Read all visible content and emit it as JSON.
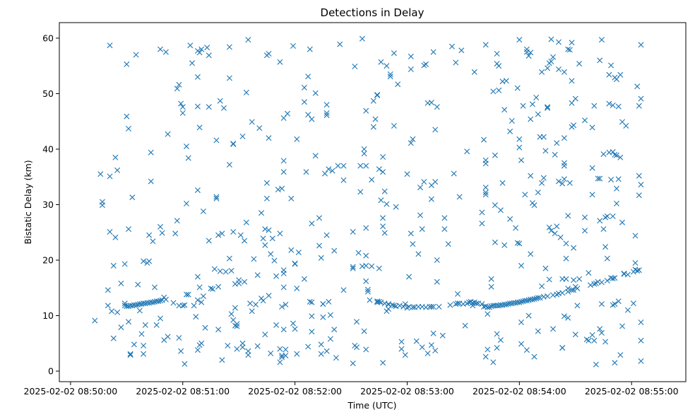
{
  "chart_data": {
    "type": "scatter",
    "title": "Detections in Delay",
    "xlabel": "Time (UTC)",
    "ylabel": "Bistatic Delay (km)",
    "marker": "x",
    "color": "#1f77b4",
    "grid": false,
    "legend": "none",
    "xlim": [
      "2025-02-02 08:49:54",
      "2025-02-02 08:55:29"
    ],
    "ylim": [
      -1.9,
      62.8
    ],
    "x_ticks": [
      "2025-02-02 08:50:00",
      "2025-02-02 08:51:00",
      "2025-02-02 08:52:00",
      "2025-02-02 08:53:00",
      "2025-02-02 08:54:00",
      "2025-02-02 08:55:00"
    ],
    "y_ticks": [
      0,
      10,
      20,
      30,
      40,
      50,
      60
    ],
    "series": [
      {
        "points_text": "08:50:13|9.1;08:50:16|35.5;08:50:17|30.5;08:50:17|29.9;08:50:20|11.8;08:50:20|14.6;08:50:21|58.7;08:50:21|25.1;08:50:21|35.1;08:50:22|10.8;08:50:23|19.0;08:50:23|5.9;08:50:24|38.5;08:50:24|24.1;08:50:25|10.6;08:50:25|36.2;08:50:27|15.8;08:50:27|7.9;08:50:29|11.8;08:50:29|12.2;08:50:29|19.3;08:50:30|55.3;08:50:30|45.9;08:50:30|11.7;08:50:31|43.7;08:50:31|25.6;08:50:31|8.9;08:50:31|11.7;08:50:32|3.1;08:50:32|11.8;08:50:32|2.9;08:50:33|31.3;08:50:33|11.8;08:50:34|11.9;08:50:34|4.8;08:50:35|57.0;08:50:35|11.9;08:50:36|12.0;08:50:36|15.6;08:50:37|12.1;08:50:37|10.9;08:50:38|12.1;08:50:38|6.7;08:50:39|4.6;08:50:39|19.8;08:50:39|12.2;08:50:39|3.1;08:50:40|12.2;08:50:40|8.3;08:50:41|19.5;08:50:41|12.3;08:50:42|12.3;08:50:42|19.8;08:50:42|24.5;08:50:43|39.4;08:50:43|34.2;08:50:43|12.4;08:50:44|12.4;08:50:44|23.4;08:50:45|12.5;08:50:45|15.1;08:50:46|12.6;08:50:46|8.3;08:50:47|12.6;08:50:48|12.7;08:50:48|9.5;08:50:48|26.0;08:50:48|58.0;08:50:49|24.9;08:50:49|12.8;08:50:50|5.6;08:50:50|13.3;08:50:51|57.5;08:50:51|12.9;08:50:52|6.2;08:50:52|42.7;08:50:55|12.3;08:50:56|24.8;08:50:57|27.1;08:50:57|50.9;08:50:58|6.0;08:50:58|11.8;08:50:58|51.6;08:50:59|48.2;08:50:59|3.6;08:51:00|46.5;08:51:00|47.6;08:51:00|11.8;08:51:01|1.3;08:51:01|11.9;08:51:02|40.5;08:51:02|13.8;08:51:02|30.2;08:51:03|13.8;08:51:03|38.4;08:51:04|58.7;08:51:05|55.5;08:51:06|11.8;08:51:07|9.8;08:51:08|3.8;08:51:08|57.7;08:51:08|32.6;08:51:08|53.0;08:51:08|17.0;08:51:08|47.7;08:51:08|12.8;08:51:09|4.7;08:51:09|57.4;08:51:09|43.9;08:51:09|15.1;08:51:10|5.0;08:51:10|58.0;08:51:10|12.4;08:51:11|13.5;08:51:11|28.8;08:51:12|7.8;08:51:13|58.3;08:51:14|23.5;08:51:14|56.9;08:51:14|47.6;08:51:15|14.9;08:51:16|14.8;08:51:17|18.4;08:51:18|31.4;08:51:18|31.1;08:51:18|41.6;08:51:19|7.5;08:51:19|15.2;08:51:19|24.5;08:51:20|18.0;08:51:20|48.7;08:51:21|2.0;08:51:21|24.8;08:51:22|47.4;08:51:23|17.9;08:51:24|4.6;08:51:25|58.4;08:51:25|20.3;08:51:25|37.2;08:51:25|52.8;08:51:26|10.3;08:51:26|18.1;08:51:27|9.2;08:51:27|41.0;08:51:27|25.1;08:51:27|40.9;08:51:28|8.2;08:51:28|11.4;08:51:28|15.7;08:51:29|8.1;08:51:29|8.5;08:51:29|4.0;08:51:30|15.8;08:51:30|16.4;08:51:31|24.5;08:51:32|5.0;08:51:32|42.3;08:51:32|4.3;08:51:33|23.5;08:51:33|16.1;08:51:34|26.8;08:51:34|50.2;08:51:35|3.6;08:51:35|2.9;08:51:35|59.7;08:51:36|12.2;08:51:37|10.8;08:51:37|44.9;08:51:38|20.2;08:51:39|12.0;08:51:40|17.3;08:51:40|4.5;08:51:41|43.8;08:51:42|28.5;08:51:42|13.1;08:51:43|12.7;08:51:43|23.9;08:51:44|6.6;08:51:44|22.7;08:51:44|25.6;08:51:45|33.9;08:51:45|56.9;08:51:45|31.1;08:51:46|13.6;08:51:46|57.2;08:51:46|25.4;08:51:46|42.0;08:51:47|3.2;08:51:47|21.1;08:51:48|23.9;08:51:49|19.9;08:51:50|8.3;08:51:50|17.1;08:51:51|32.7;08:51:52|4.0;08:51:52|24.8;08:51:52|55.7;08:51:52|1.6;08:51:53|2.8;08:51:53|2.5;08:51:53|32.9;08:51:53|11.6;08:51:54|35.9;08:51:54|45.6;08:51:54|18.2;08:51:54|17.6;08:51:54|37.9;08:51:54|7.5;08:51:54|15.1;08:51:55|2.8;08:51:55|12.0;08:51:55|3.9;08:51:56|46.4;08:51:58|31.1;08:51:58|21.8;08:51:59|58.6;08:51:59|8.6;08:52:00|19.4;08:52:00|19.3;08:52:00|7.6;08:52:01|41.8;08:52:01|3.1;08:52:01|14.9;08:52:02|21.4;08:52:05|48.5;08:52:05|16.6;08:52:05|51.1;08:52:06|35.9;08:52:07|46.2;08:52:07|4.4;08:52:07|53.1;08:52:08|58.0;08:52:08|12.5;08:52:09|26.6;08:52:09|12.4;08:52:09|7.1;08:52:09|45.4;08:52:09|9.9;08:52:11|38.8;08:52:11|50.1;08:52:13|27.6;08:52:13|22.6;08:52:14|20.4;08:52:14|3.1;08:52:14|4.8;08:52:15|12.1;08:52:15|12.1;08:52:15|9.7;08:52:16|35.6;08:52:17|48.0;08:52:17|46.5;08:52:17|46.1;08:52:17|3.6;08:52:17|24.5;08:52:18|12.5;08:52:18|36.4;08:52:19|5.8;08:52:19|10.1;08:52:20|36.1;08:52:21|7.5;08:52:21|21.7;08:52:22|2.4;08:52:23|37.0;08:52:24|58.9;08:52:26|34.4;08:52:26|14.6;08:52:26|37.0;08:52:31|25.1;08:52:31|18.5;08:52:31|18.8;08:52:31|1.4;08:52:32|54.9;08:52:32|4.6;08:52:33|4.3;08:52:33|8.9;08:52:34|21.3;08:52:35|32.3;08:52:35|37.0;08:52:36|18.9;08:52:36|59.9;08:52:37|40.0;08:52:37|7.2;08:52:37|39.2;08:52:38|20.8;08:52:38|19.0;08:52:38|46.9;08:52:38|37.0;08:52:38|25.8;08:52:38|3.9;08:52:38|16.2;08:52:39|14.7;08:52:39|14.3;08:52:40|12.8;08:52:41|34.5;08:52:41|18.9;08:52:42|48.7;08:52:42|44.0;08:52:43|45.4;08:52:44|12.6;08:52:44|49.7;08:52:44|49.8;08:52:44|12.4;08:52:45|12.5;08:52:45|36.4;08:52:45|18.5;08:52:46|55.7;08:52:46|30.8;08:52:46|12.4;08:52:47|26.1;08:52:47|27.6;08:52:47|38.6;08:52:47|35.9;08:52:47|1.5;08:52:48|24.9;08:52:48|12.2;08:52:48|32.4;08:52:49|30.1;08:52:49|55.0;08:52:49|10.8;08:52:50|12.0;08:52:50|12.1;08:52:50|11.2;08:52:51|53.1;08:52:51|53.5;08:52:52|11.9;08:52:53|11.8;08:52:53|44.2;08:52:53|57.3;08:52:54|11.7;08:52:54|29.6;08:52:55|51.7;08:52:56|11.8;08:52:57|5.3;08:52:57|4.0;08:52:58|11.6;08:52:59|12.1;08:52:59|2.9;08:53:00|35.5;08:53:00|11.4;08:53:01|17.0;08:53:01|11.6;08:53:02|56.7;08:53:02|24.8;08:53:02|54.4;08:53:02|41.1;08:53:03|22.9;08:53:03|11.5;08:53:03|41.8;08:53:04|11.5;08:53:05|5.4;08:53:06|11.6;08:53:06|21.1;08:53:07|33.1;08:53:07|28.1;08:53:08|4.3;08:53:08|11.6;08:53:08|25.6;08:53:09|34.1;08:53:09|55.1;08:53:10|55.3;08:53:10|11.5;08:53:11|3.2;08:53:11|48.3;08:53:12|11.6;08:53:13|33.5;08:53:13|31.0;08:53:13|11.6;08:53:13|48.4;08:53:13|4.7;08:53:14|6.8;08:53:14|11.6;08:53:14|57.5;08:53:15|3.7;08:53:15|34.1;08:53:15|43.5;08:53:16|20.0;08:53:16|16.1;08:53:16|47.6;08:53:17|11.6;08:53:19|6.4;08:53:20|25.6;08:53:20|27.6;08:53:22|22.9;08:53:23|11.9;08:53:24|58.5;08:53:25|35.6;08:53:26|55.6;08:53:26|12.1;08:53:27|12.2;08:53:27|13.9;08:53:28|12.2;08:53:28|31.4;08:53:29|57.8;08:53:30|12.1;08:53:31|8.2;08:53:32|12.2;08:53:32|39.6;08:53:33|12.4;08:53:34|12.5;08:53:35|12.3;08:53:35|11.8;08:53:36|12.4;08:53:36|53.9;08:53:37|12.2;08:53:38|12.2;08:53:40|12.1;08:53:40|26.6;08:53:40|28.6;08:53:41|11.6;08:53:41|41.7;08:53:42|11.7;08:53:42|58.8;08:53:42|2.6;08:53:42|32.2;08:53:42|33.1;08:53:42|38.0;08:53:42|37.4;08:53:42|31.8;08:53:43|11.5;08:53:43|10.3;08:53:43|3.9;08:53:44|11.5;08:53:45|11.7;08:53:45|15.2;08:53:45|16.6;08:53:46|11.8;08:53:46|1.6;08:53:46|50.4;08:53:47|11.8;08:53:47|29.9;08:53:47|23.2;08:53:47|38.9;08:53:48|11.8;08:53:48|57.2;08:53:48|55.4;08:53:48|6.7;08:53:48|4.2;08:53:49|11.8;08:53:49|50.6;08:53:49|55.0;08:53:50|11.9;08:53:50|29.0;08:53:50|5.6;08:53:51|11.9;08:53:51|52.2;08:53:51|33.9;08:53:52|12.0;08:53:52|47.1;08:53:52|22.7;08:53:53|12.0;08:53:53|52.3;08:53:54|12.1;08:53:55|12.2;08:53:55|43.2;08:53:55|27.4;08:53:56|12.2;08:53:56|45.1;08:53:57|12.3;08:53:58|12.3;08:53:58|25.8;08:53:59|12.4;08:53:59|51.0;08:53:59|23.1;08:54:00|12.4;08:54:00|59.7;08:54:00|40.3;08:54:00|23.0;08:54:00|41.8;08:54:01|12.5;08:54:01|8.8;08:54:01|38.0;08:54:01|4.9;08:54:01|19.0;08:54:02|12.6;08:54:02|47.8;08:54:03|12.7;08:54:03|31.8;08:54:04|12.7;08:54:04|58.0;08:54:04|57.5;08:54:04|3.8;08:54:05|12.8;08:54:05|56.8;08:54:05|10.0;08:54:06|12.9;08:54:06|57.4;08:54:06|21.1;08:54:06|35.2;08:54:06|45.4;08:54:07|12.9;08:54:07|30.3;08:54:07|48.1;08:54:08|13.0;08:54:08|29.9;08:54:08|2.6;08:54:09|13.1;08:54:09|49.3;08:54:10|32.2;08:54:10|46.3;08:54:10|13.2;08:54:10|7.2;08:54:11|42.2;08:54:11|13.2;08:54:12|53.9;08:54:12|33.9;08:54:12|15.3;08:54:13|13.4;08:54:13|34.8;08:54:13|42.2;08:54:14|39.7;08:54:14|18.5;08:54:15|54.6;08:54:15|47.6;08:54:15|13.5;08:54:15|47.4;08:54:16|55.5;08:54:16|16.5;08:54:16|25.9;08:54:17|59.8;08:54:17|25.3;08:54:17|55.8;08:54:18|56.6;08:54:18|7.6;08:54:18|13.7;08:54:19|39.0;08:54:19|24.8;08:54:20|13.8;08:54:20|41.1;08:54:20|26.1;08:54:21|54.4;08:54:21|59.3;08:54:21|14.0;08:54:21|34.2;08:54:22|24.1;08:54:23|33.8;08:54:23|14.1;08:54:23|16.6;08:54:23|4.2;08:54:23|4.2;08:54:24|37.0;08:54:24|42.0;08:54:24|9.9;08:54:24|37.5;08:54:24|53.9;08:54:24|34.6;08:54:25|20.3;08:54:25|23.0;08:54:25|16.6;08:54:26|14.3;08:54:26|28.0;08:54:26|58.0;08:54:26|9.6;08:54:26|14.9;08:54:27|57.9;08:54:27|33.9;08:54:28|59.2;08:54:28|52.3;08:54:28|44.0;08:54:28|14.6;08:54:28|48.3;08:54:29|44.3;08:54:29|14.6;08:54:29|22.2;08:54:29|16.4;08:54:30|6.6;08:54:30|15.2;08:54:30|49.1;08:54:31|14.9;08:54:31|11.8;08:54:32|55.4;08:54:32|16.6;08:54:35|45.2;08:54:35|27.7;08:54:35|25.3;08:54:36|5.7;08:54:37|17.7;08:54:37|5.5;08:54:38|15.5;08:54:39|31.8;08:54:39|36.6;08:54:39|43.9;08:54:39|6.5;08:54:40|47.8;08:54:40|15.7;08:54:40|5.5;08:54:41|15.8;08:54:41|1.2;08:54:42|34.7;08:54:42|16.1;08:54:43|27.1;08:54:43|56.0;08:54:43|7.6;08:54:43|34.7;08:54:44|12.1;08:54:44|59.7;08:54:44|16.0;08:54:44|6.9;08:54:45|39.1;08:54:45|25.6;08:54:46|27.7;08:54:46|22.4;08:54:46|5.3;08:54:47|27.9;08:54:47|16.3;08:54:47|20.3;08:54:48|53.4;08:54:48|48.2;08:54:48|39.4;08:54:49|16.8;08:54:49|34.5;08:54:49|55.1;08:54:50|16.7;08:54:50|39.5;08:54:50|27.9;08:54:50|47.9;08:54:50|11.9;08:54:51|1.5;08:54:51|52.9;08:54:51|16.8;08:54:51|39.0;08:54:51|12.1;08:54:52|52.6;08:54:52|38.9;08:54:52|32.9;08:54:52|30.2;08:54:53|47.7;08:54:53|34.6;08:54:53|12.6;08:54:54|53.4;08:54:54|38.5;08:54:54|2.9;08:54:55|44.9;08:54:55|26.8;08:54:55|8.1;08:54:56|17.6;08:54:56|17.5;08:54:57|44.2;08:54:58|17.4;08:54:58|11.0;08:55:01|12.2;08:55:01|17.9;08:55:02|18.3;08:55:02|24.4;08:55:02|19.5;08:55:03|51.3;08:55:03|18.1;08:55:03|18.1;08:55:04|35.2;08:55:04|47.8;08:55:04|31.7;08:55:04|18.2;08:55:05|33.6;08:55:05|8.8;08:55:05|5.5;08:55:05|1.8;08:55:05|49.1;08:55:05|58.8"
      }
    ]
  }
}
